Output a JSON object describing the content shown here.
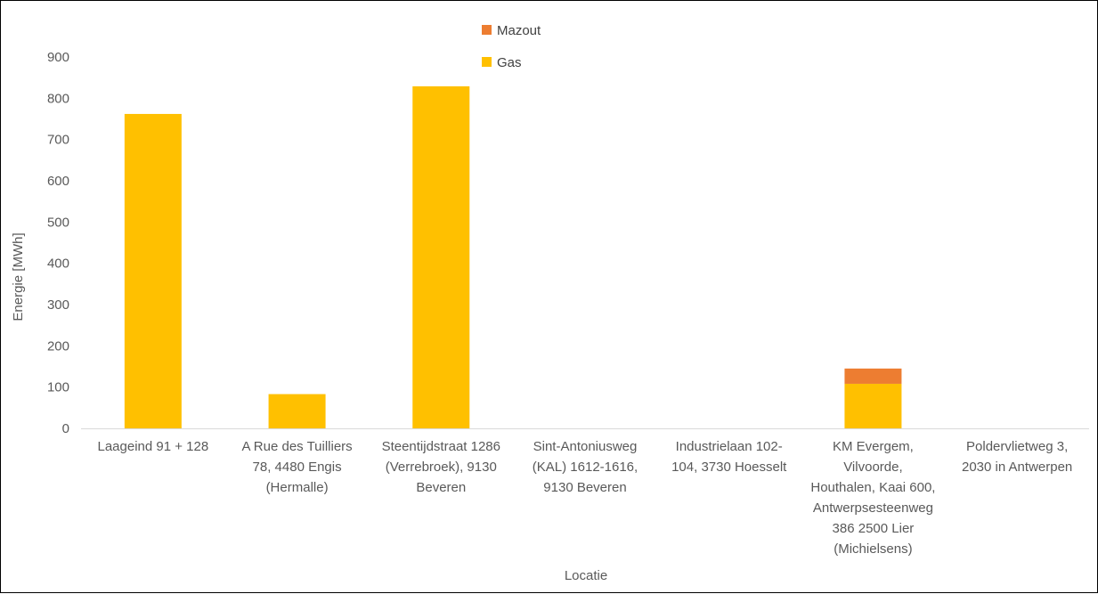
{
  "chart_data": {
    "type": "bar",
    "stacked": true,
    "title": "",
    "xlabel": "Locatie",
    "ylabel": "Energie [MWh]",
    "ylim": [
      0,
      900
    ],
    "yticks": [
      0,
      100,
      200,
      300,
      400,
      500,
      600,
      700,
      800,
      900
    ],
    "grid": false,
    "legend_position": "top-center",
    "legend_order": [
      "Mazout",
      "Gas"
    ],
    "categories": [
      [
        "Laageind 91 + 128"
      ],
      [
        "A Rue des Tuilliers",
        "78, 4480 Engis",
        "(Hermalle)"
      ],
      [
        "Steentijdstraat 1286",
        "(Verrebroek), 9130",
        "Beveren"
      ],
      [
        "Sint-Antoniusweg",
        "(KAL) 1612-1616,",
        "9130 Beveren"
      ],
      [
        "Industrielaan 102-",
        "104, 3730 Hoesselt"
      ],
      [
        "KM Evergem,",
        "Vilvoorde,",
        "Houthalen, Kaai 600,",
        "Antwerpsesteenweg",
        "386 2500 Lier",
        "(Michielsens)"
      ],
      [
        "Poldervlietweg 3,",
        "2030 in Antwerpen"
      ]
    ],
    "series": [
      {
        "name": "Gas",
        "color": "#FFC000",
        "values": [
          762,
          83,
          829,
          0,
          0,
          108,
          0
        ]
      },
      {
        "name": "Mazout",
        "color": "#ED7D31",
        "values": [
          0,
          0,
          0,
          0,
          0,
          37,
          0
        ]
      }
    ]
  }
}
